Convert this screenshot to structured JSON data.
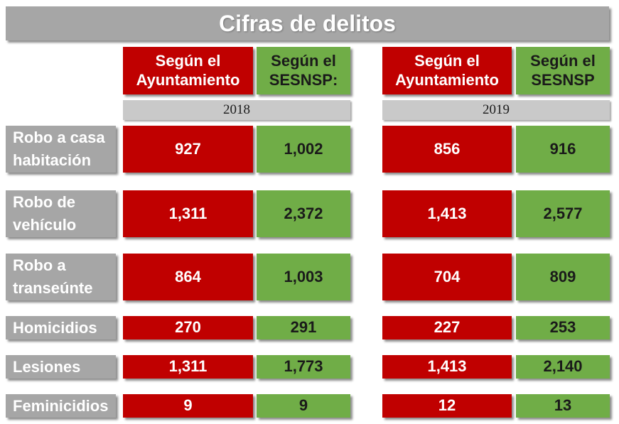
{
  "colors": {
    "red": "#c00000",
    "green": "#70ad47",
    "gray": "#a6a6a6",
    "light_gray": "#c9c9c9"
  },
  "chart_data": {
    "type": "table",
    "title": "Cifras de delitos",
    "years": [
      "2018",
      "2019"
    ],
    "column_headers": [
      "Según el\nAyuntamiento",
      "Según el\nSESNSP:",
      "Según el\nAyuntamiento",
      "Según el\nSESNSP"
    ],
    "rows": [
      {
        "label": "Robo a casa\nhabitación",
        "values": [
          "927",
          "1,002",
          "856",
          "916"
        ]
      },
      {
        "label": "Robo de\nvehículo",
        "values": [
          "1,311",
          "2,372",
          "1,413",
          "2,577"
        ]
      },
      {
        "label": "Robo a\ntranseúnte",
        "values": [
          "864",
          "1,003",
          "704",
          "809"
        ]
      },
      {
        "label": "Homicidios",
        "values": [
          "270",
          "291",
          "227",
          "253"
        ]
      },
      {
        "label": "Lesiones",
        "values": [
          "1,311",
          "1,773",
          "1,413",
          "2,140"
        ]
      },
      {
        "label": "Feminicidios",
        "values": [
          "9",
          "9",
          "12",
          "13"
        ]
      }
    ]
  }
}
